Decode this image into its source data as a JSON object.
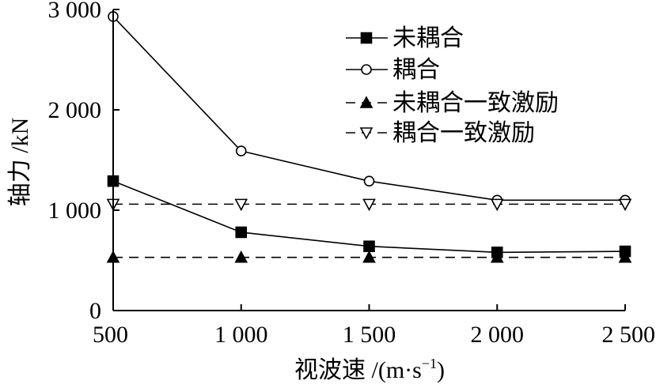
{
  "chart_data": {
    "type": "line",
    "xlabel": "视波速 /(m·s",
    "xlabel_sup": "−1",
    "xlabel_end": ")",
    "ylabel": "轴力 /kN",
    "x": [
      500,
      1000,
      1500,
      2000,
      2500
    ],
    "x_ticks": [
      "500",
      "1 000",
      "1 500",
      "2 000",
      "2 500"
    ],
    "y_ticks": [
      "0",
      "1 000",
      "2 000",
      "3 000"
    ],
    "y_tick_values": [
      0,
      1000,
      2000,
      3000
    ],
    "xlim": [
      500,
      2500
    ],
    "ylim": [
      0,
      3000
    ],
    "grid": false,
    "legend_position": "top-right",
    "series": [
      {
        "name": "未耦合",
        "values": [
          1290,
          780,
          640,
          580,
          590
        ],
        "marker": "square-filled",
        "line": "solid"
      },
      {
        "name": "耦合",
        "values": [
          2930,
          1590,
          1290,
          1100,
          1100
        ],
        "marker": "circle-open",
        "line": "solid"
      },
      {
        "name": "未耦合一致激励",
        "values": [
          530,
          530,
          530,
          530,
          530
        ],
        "marker": "triangle-up-filled",
        "line": "dashed"
      },
      {
        "name": "耦合一致激励",
        "values": [
          1060,
          1060,
          1060,
          1060,
          1060
        ],
        "marker": "triangle-down-open",
        "line": "dashed"
      }
    ]
  }
}
